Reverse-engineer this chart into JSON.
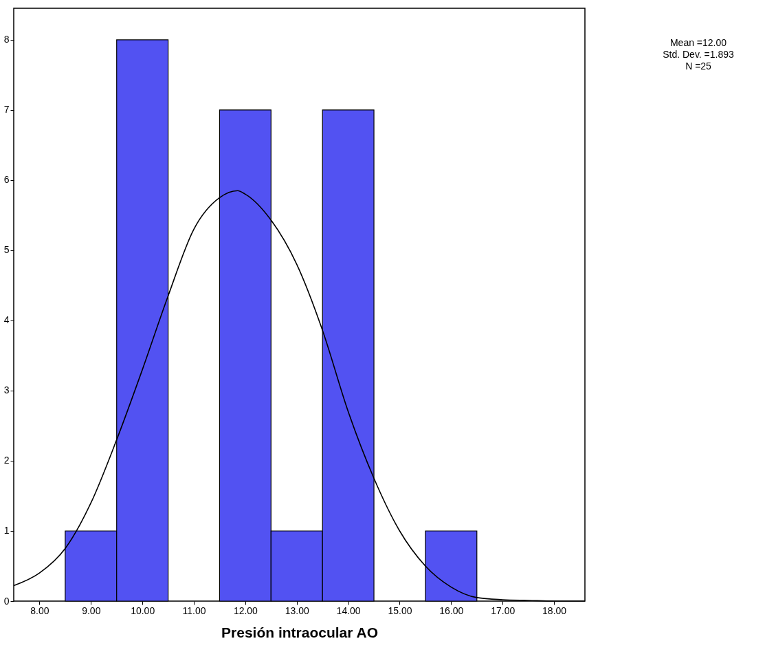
{
  "chart_data": {
    "type": "histogram",
    "xlabel": "Presión intraocular AO",
    "bins": [
      8.5,
      9.5,
      10.5,
      11.5,
      12.5,
      13.5,
      14.5,
      15.5,
      16.5
    ],
    "values": [
      1,
      8,
      0,
      7,
      1,
      7,
      0,
      1
    ],
    "color": "#5252f2",
    "series": [
      {
        "type": "line",
        "color": "#000000",
        "x": [
          7.5,
          8.0,
          8.5,
          9.0,
          9.5,
          10.0,
          10.5,
          11.0,
          11.5,
          11.85,
          12.0,
          12.5,
          13.0,
          13.5,
          14.0,
          14.5,
          15.0,
          15.5,
          16.0,
          16.5,
          17.0,
          17.5,
          18.0,
          18.6
        ],
        "values": [
          0.22,
          0.4,
          0.75,
          1.4,
          2.3,
          3.3,
          4.35,
          5.3,
          5.75,
          5.85,
          5.8,
          5.43,
          4.8,
          3.86,
          2.7,
          1.75,
          1.0,
          0.5,
          0.2,
          0.05,
          0.02,
          0.01,
          0,
          0
        ]
      }
    ],
    "xlim": [
      7.5,
      18.6
    ],
    "ylim": [
      0,
      8.45
    ],
    "xticks": [
      {
        "value": 8,
        "label": "8.00"
      },
      {
        "value": 9,
        "label": "9.00"
      },
      {
        "value": 10,
        "label": "10.00"
      },
      {
        "value": 11,
        "label": "11.00"
      },
      {
        "value": 12,
        "label": "12.00"
      },
      {
        "value": 13,
        "label": "13.00"
      },
      {
        "value": 14,
        "label": "14.00"
      },
      {
        "value": 15,
        "label": "15.00"
      },
      {
        "value": 16,
        "label": "16.00"
      },
      {
        "value": 17,
        "label": "17.00"
      },
      {
        "value": 18,
        "label": "18.00"
      }
    ],
    "yticks": [
      0,
      1,
      2,
      3,
      4,
      5,
      6,
      7,
      8
    ],
    "annotations": [
      "Mean =12.00",
      "Std. Dev. =1.893",
      "N =25"
    ],
    "grid": false
  }
}
